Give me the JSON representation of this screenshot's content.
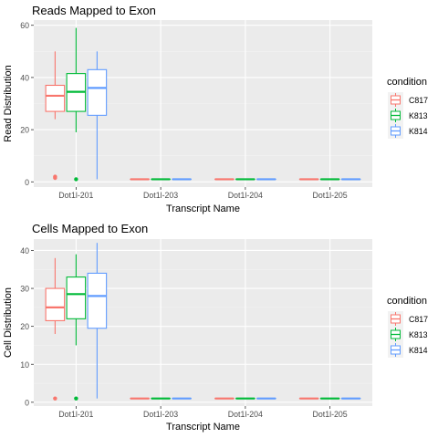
{
  "colors": {
    "panel_bg": "#ebebeb",
    "grid_major": "#ffffff",
    "axis_text": "#4d4d4d",
    "title_text": "#000000",
    "C817": "#f8766d",
    "K813": "#00ba38",
    "K814": "#619cff"
  },
  "chart_data": [
    {
      "type": "box",
      "title": "Reads Mapped to Exon",
      "xlabel": "Transcript Name",
      "ylabel": "Read Distribution",
      "ylim": [
        -2,
        62
      ],
      "yticks": [
        0,
        20,
        40,
        60
      ],
      "categories": [
        "Dot1l-201",
        "Dot1l-203",
        "Dot1l-204",
        "Dot1l-205"
      ],
      "grid": true,
      "legend": {
        "title": "condition",
        "position": "right",
        "entries": [
          "C817",
          "K813",
          "K814"
        ]
      },
      "series": [
        {
          "name": "C817",
          "color": "#f8766d",
          "boxes": [
            {
              "category": "Dot1l-201",
              "min": 24,
              "q1": 27,
              "median": 33,
              "q3": 37,
              "max": 50,
              "outliers": [
                1.5,
                2
              ]
            },
            {
              "category": "Dot1l-203",
              "min": 1,
              "q1": 1,
              "median": 1,
              "q3": 1,
              "max": 1,
              "outliers": []
            },
            {
              "category": "Dot1l-204",
              "min": 1,
              "q1": 1,
              "median": 1,
              "q3": 1,
              "max": 1,
              "outliers": []
            },
            {
              "category": "Dot1l-205",
              "min": 1,
              "q1": 1,
              "median": 1,
              "q3": 1,
              "max": 1,
              "outliers": []
            }
          ]
        },
        {
          "name": "K813",
          "color": "#00ba38",
          "boxes": [
            {
              "category": "Dot1l-201",
              "min": 19,
              "q1": 27,
              "median": 34.5,
              "q3": 41.5,
              "max": 59,
              "outliers": [
                1
              ]
            },
            {
              "category": "Dot1l-203",
              "min": 1,
              "q1": 1,
              "median": 1,
              "q3": 1,
              "max": 1,
              "outliers": []
            },
            {
              "category": "Dot1l-204",
              "min": 1,
              "q1": 1,
              "median": 1,
              "q3": 1,
              "max": 1,
              "outliers": []
            },
            {
              "category": "Dot1l-205",
              "min": 1,
              "q1": 1,
              "median": 1,
              "q3": 1,
              "max": 1,
              "outliers": []
            }
          ]
        },
        {
          "name": "K814",
          "color": "#619cff",
          "boxes": [
            {
              "category": "Dot1l-201",
              "min": 1,
              "q1": 25.5,
              "median": 36,
              "q3": 43,
              "max": 50,
              "outliers": []
            },
            {
              "category": "Dot1l-203",
              "min": 1,
              "q1": 1,
              "median": 1,
              "q3": 1,
              "max": 1,
              "outliers": []
            },
            {
              "category": "Dot1l-204",
              "min": 1,
              "q1": 1,
              "median": 1,
              "q3": 1,
              "max": 1,
              "outliers": []
            },
            {
              "category": "Dot1l-205",
              "min": 1,
              "q1": 1,
              "median": 1,
              "q3": 1,
              "max": 1,
              "outliers": []
            }
          ]
        }
      ]
    },
    {
      "type": "box",
      "title": "Cells Mapped to Exon",
      "xlabel": "Transcript Name",
      "ylabel": "Cell Distribution",
      "ylim": [
        -1,
        43
      ],
      "yticks": [
        0,
        10,
        20,
        30,
        40
      ],
      "categories": [
        "Dot1l-201",
        "Dot1l-203",
        "Dot1l-204",
        "Dot1l-205"
      ],
      "grid": true,
      "legend": {
        "title": "condition",
        "position": "right",
        "entries": [
          "C817",
          "K813",
          "K814"
        ]
      },
      "series": [
        {
          "name": "C817",
          "color": "#f8766d",
          "boxes": [
            {
              "category": "Dot1l-201",
              "min": 18,
              "q1": 21.5,
              "median": 25,
              "q3": 30,
              "max": 38,
              "outliers": [
                1
              ]
            },
            {
              "category": "Dot1l-203",
              "min": 1,
              "q1": 1,
              "median": 1,
              "q3": 1,
              "max": 1,
              "outliers": []
            },
            {
              "category": "Dot1l-204",
              "min": 1,
              "q1": 1,
              "median": 1,
              "q3": 1,
              "max": 1,
              "outliers": []
            },
            {
              "category": "Dot1l-205",
              "min": 1,
              "q1": 1,
              "median": 1,
              "q3": 1,
              "max": 1,
              "outliers": []
            }
          ]
        },
        {
          "name": "K813",
          "color": "#00ba38",
          "boxes": [
            {
              "category": "Dot1l-201",
              "min": 15,
              "q1": 22,
              "median": 28.5,
              "q3": 33,
              "max": 39,
              "outliers": [
                1
              ]
            },
            {
              "category": "Dot1l-203",
              "min": 1,
              "q1": 1,
              "median": 1,
              "q3": 1,
              "max": 1,
              "outliers": []
            },
            {
              "category": "Dot1l-204",
              "min": 1,
              "q1": 1,
              "median": 1,
              "q3": 1,
              "max": 1,
              "outliers": []
            },
            {
              "category": "Dot1l-205",
              "min": 1,
              "q1": 1,
              "median": 1,
              "q3": 1,
              "max": 1,
              "outliers": []
            }
          ]
        },
        {
          "name": "K814",
          "color": "#619cff",
          "boxes": [
            {
              "category": "Dot1l-201",
              "min": 1,
              "q1": 19.5,
              "median": 28,
              "q3": 34,
              "max": 42,
              "outliers": []
            },
            {
              "category": "Dot1l-203",
              "min": 1,
              "q1": 1,
              "median": 1,
              "q3": 1,
              "max": 1,
              "outliers": []
            },
            {
              "category": "Dot1l-204",
              "min": 1,
              "q1": 1,
              "median": 1,
              "q3": 1,
              "max": 1,
              "outliers": []
            },
            {
              "category": "Dot1l-205",
              "min": 1,
              "q1": 1,
              "median": 1,
              "q3": 1,
              "max": 1,
              "outliers": []
            }
          ]
        }
      ]
    }
  ]
}
